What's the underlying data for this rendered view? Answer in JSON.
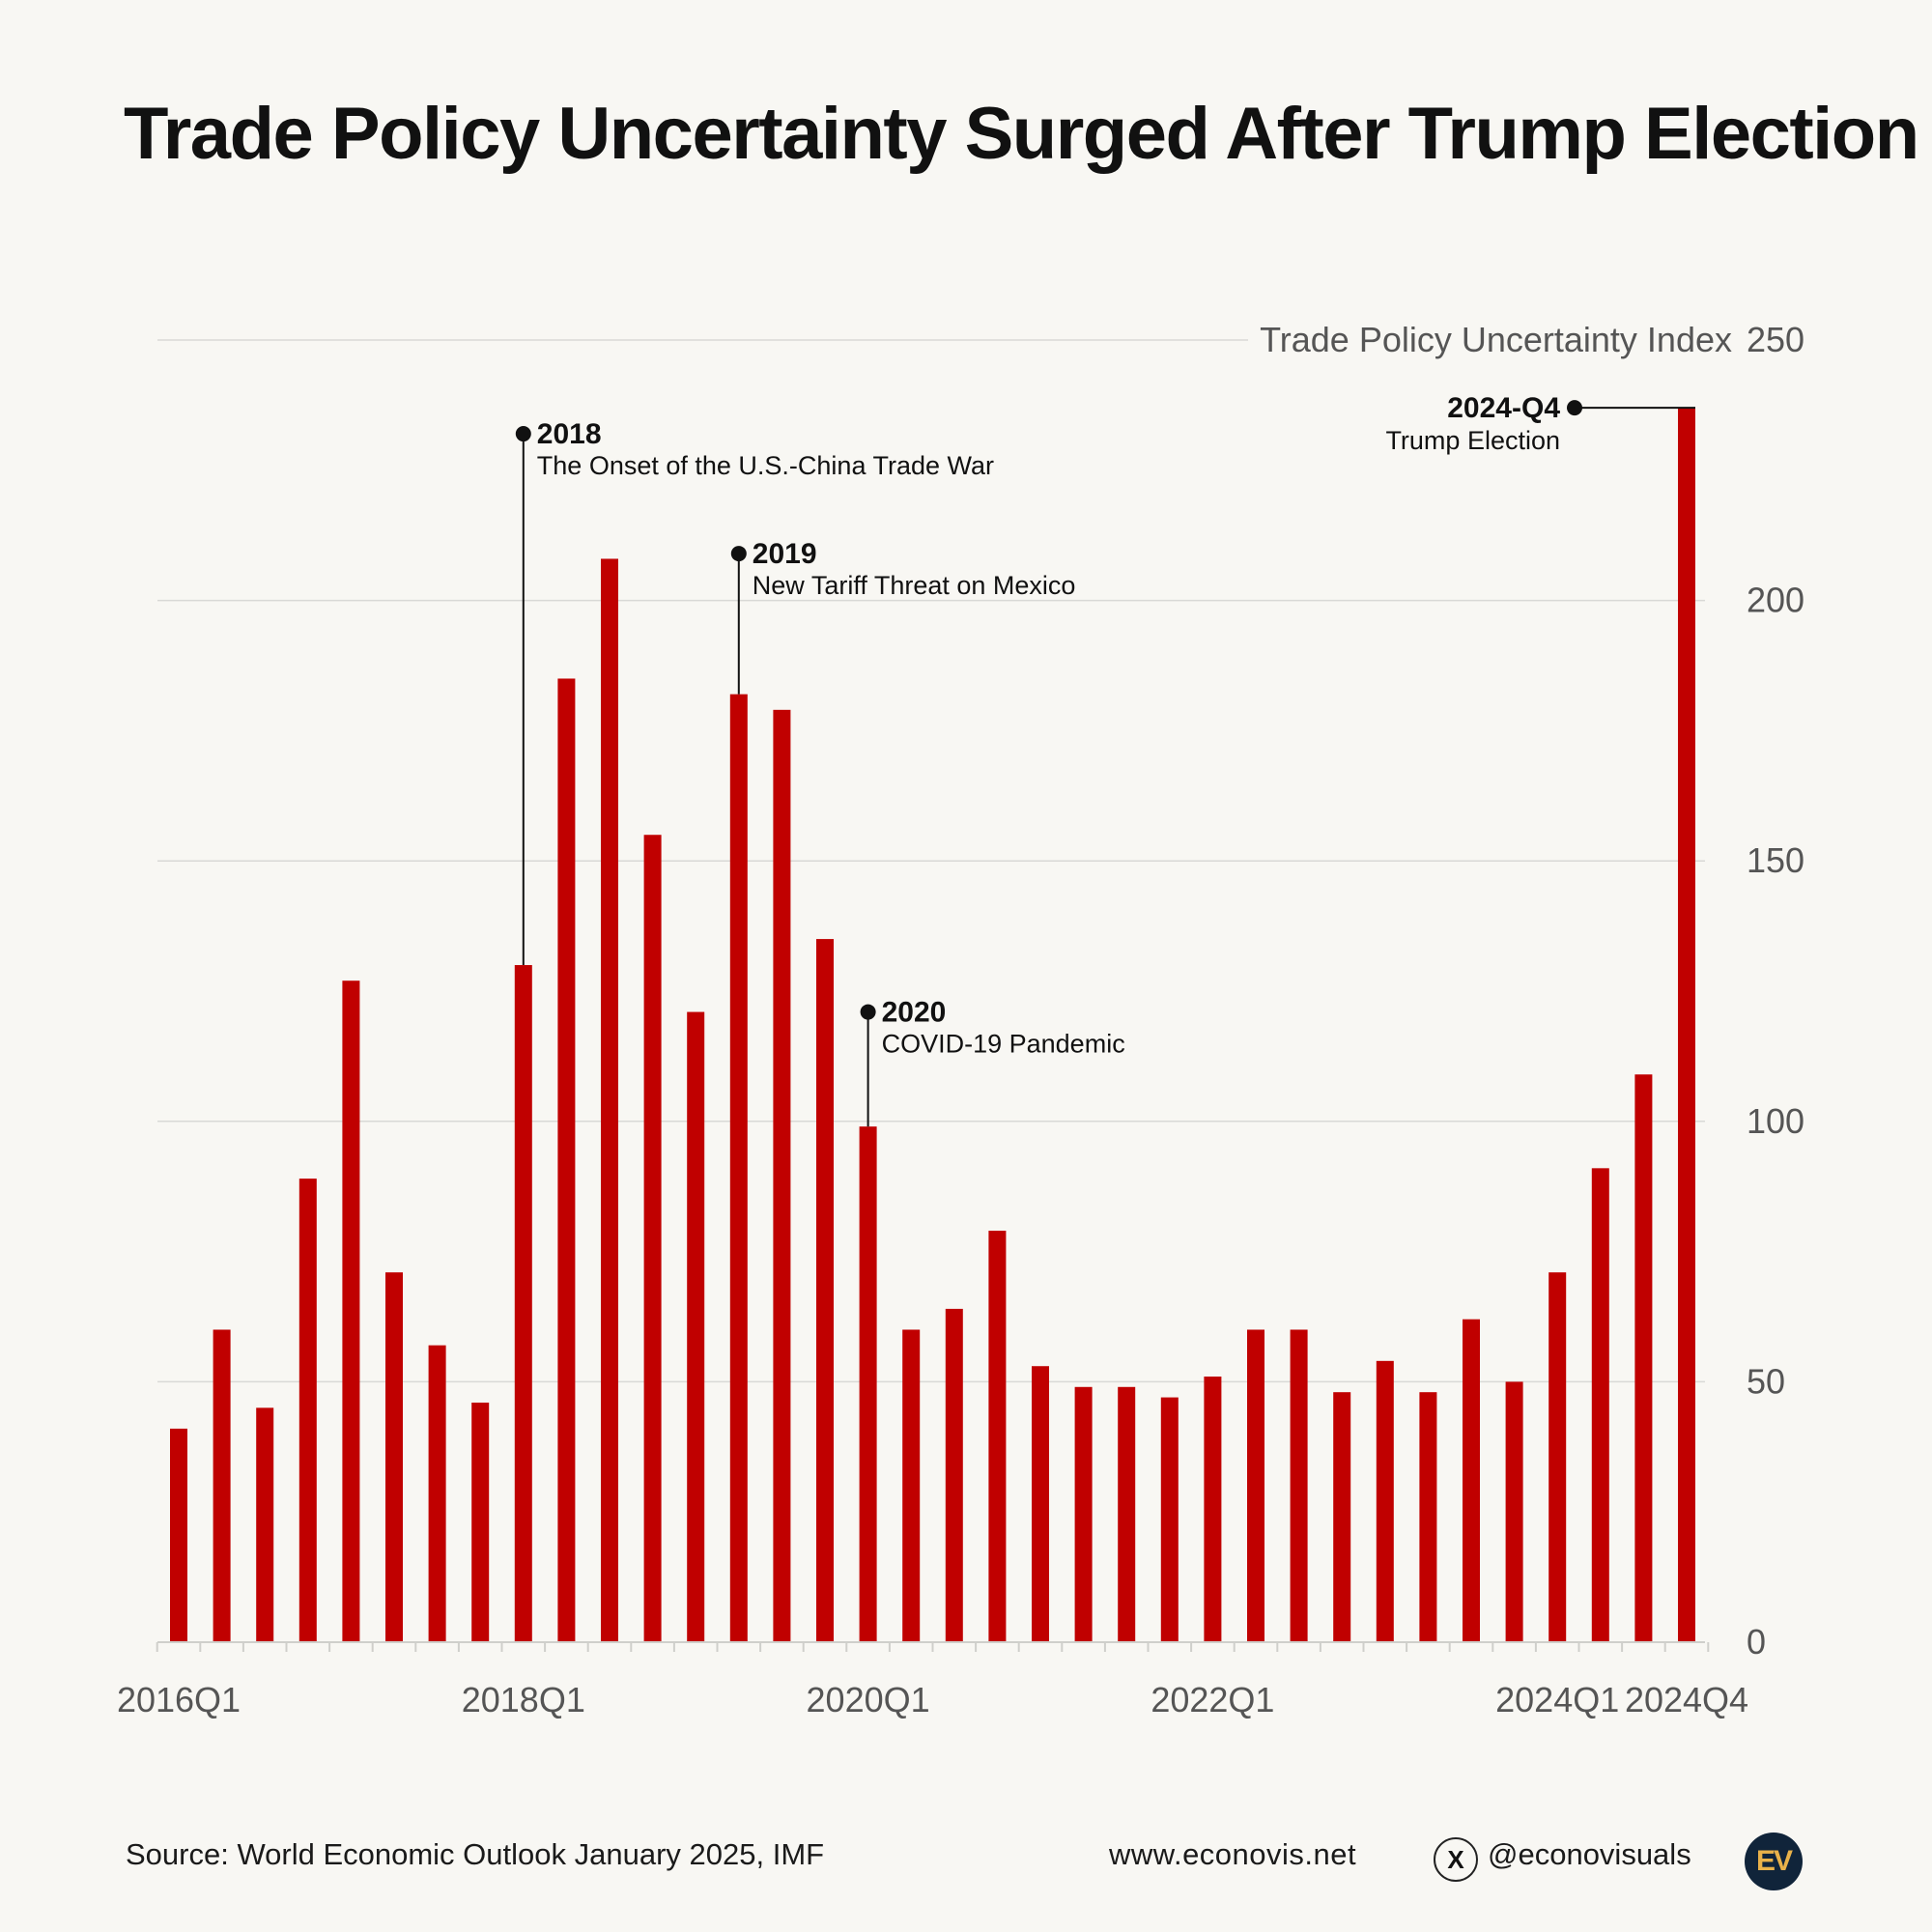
{
  "title": "Trade Policy Uncertainty Surged After Trump Election",
  "colors": {
    "bar": "#c00000",
    "grid": "#d9d9d6",
    "text": "#555555",
    "background": "#f8f7f3"
  },
  "chart_data": {
    "type": "bar",
    "ylabel": "Trade Policy Uncertainty Index",
    "ylim": [
      0,
      250
    ],
    "yticks": [
      0,
      50,
      100,
      150,
      200,
      250
    ],
    "y_axis_side": "right",
    "grid": true,
    "categories": [
      "2016Q1",
      "2016Q2",
      "2016Q3",
      "2016Q4",
      "2017Q1",
      "2017Q2",
      "2017Q3",
      "2017Q4",
      "2018Q1",
      "2018Q2",
      "2018Q3",
      "2018Q4",
      "2019Q1",
      "2019Q2",
      "2019Q3",
      "2019Q4",
      "2020Q1",
      "2020Q2",
      "2020Q3",
      "2020Q4",
      "2021Q1",
      "2021Q2",
      "2021Q3",
      "2021Q4",
      "2022Q1",
      "2022Q2",
      "2022Q3",
      "2022Q4",
      "2023Q1",
      "2023Q2",
      "2023Q3",
      "2023Q4",
      "2024Q1",
      "2024Q2",
      "2024Q3",
      "2024Q4"
    ],
    "values": [
      41,
      60,
      45,
      89,
      127,
      71,
      57,
      46,
      130,
      185,
      208,
      155,
      121,
      182,
      179,
      135,
      99,
      60,
      64,
      79,
      53,
      49,
      49,
      47,
      51,
      60,
      60,
      48,
      54,
      48,
      62,
      50,
      71,
      91,
      109,
      237
    ],
    "xtick_labels": [
      {
        "index": 0,
        "label": "2016Q1"
      },
      {
        "index": 8,
        "label": "2018Q1"
      },
      {
        "index": 16,
        "label": "2020Q1"
      },
      {
        "index": 24,
        "label": "2022Q1"
      },
      {
        "index": 32,
        "label": "2024Q1"
      },
      {
        "index": 35,
        "label": "2024Q4"
      }
    ],
    "annotations": [
      {
        "index": 8,
        "y": 232,
        "year": "2018",
        "text": "The Onset of the U.S.-China Trade War",
        "side": "right"
      },
      {
        "index": 13,
        "y": 209,
        "year": "2019",
        "text": "New Tariff Threat on Mexico",
        "side": "right"
      },
      {
        "index": 16,
        "y": 121,
        "year": "2020",
        "text": "COVID-19 Pandemic",
        "side": "right"
      },
      {
        "index": 35,
        "y": 237,
        "year": "2024-Q4",
        "text": "Trump Election",
        "side": "left"
      }
    ]
  },
  "footer": {
    "source": "Source: World Economic Outlook January 2025, IMF",
    "website": "www.econovis.net",
    "x_icon": "X",
    "handle": "@econovisuals",
    "logo": "EV"
  }
}
